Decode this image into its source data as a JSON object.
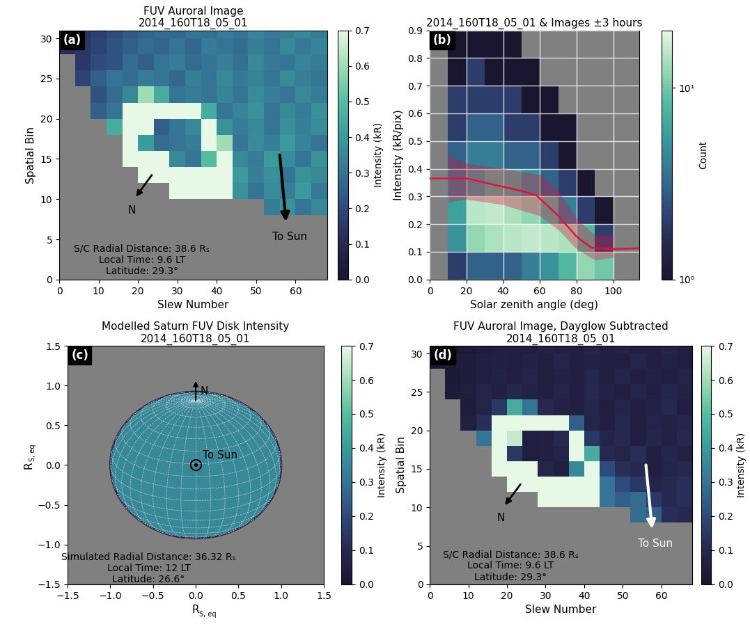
{
  "chart_data": [
    {
      "type": "heatmap",
      "panel_label": "(a)",
      "title": "FUV Auroral Image\n2014_160T18_05_01",
      "xlabel": "Slew Number",
      "ylabel": "Spatial Bin",
      "xlim": [
        0,
        68
      ],
      "ylim": [
        0,
        31
      ],
      "xticks": [
        0,
        10,
        20,
        30,
        40,
        50,
        60
      ],
      "yticks": [
        0,
        5,
        10,
        15,
        20,
        25,
        30
      ],
      "x_edges": [
        0,
        4,
        8,
        12,
        16,
        20,
        24,
        28,
        32,
        36,
        40,
        44,
        48,
        52,
        56,
        60,
        64,
        68
      ],
      "y_edges": [
        0,
        2,
        4,
        6,
        8,
        10,
        12,
        14,
        16,
        18,
        20,
        22,
        24,
        26,
        28,
        30,
        31
      ],
      "cells": [
        [
          null,
          null,
          null,
          null,
          null,
          null,
          null,
          null,
          null,
          null,
          null,
          null,
          null,
          null,
          null,
          null,
          null
        ],
        [
          null,
          null,
          null,
          null,
          null,
          null,
          null,
          null,
          null,
          null,
          null,
          null,
          null,
          null,
          null,
          null,
          null
        ],
        [
          null,
          null,
          null,
          null,
          null,
          null,
          null,
          null,
          null,
          null,
          null,
          null,
          null,
          null,
          null,
          null,
          null
        ],
        [
          null,
          null,
          null,
          null,
          null,
          null,
          null,
          null,
          null,
          null,
          null,
          null,
          null,
          null,
          null,
          null,
          null
        ],
        [
          null,
          null,
          null,
          null,
          null,
          null,
          null,
          null,
          null,
          null,
          null,
          null,
          null,
          0.32,
          0.38,
          0.3,
          0.35
        ],
        [
          null,
          null,
          null,
          null,
          null,
          null,
          null,
          0.9,
          0.9,
          0.9,
          0.85,
          0.38,
          0.3,
          0.36,
          0.33,
          0.4,
          0.31
        ],
        [
          null,
          null,
          null,
          null,
          null,
          0.9,
          0.9,
          0.9,
          0.9,
          0.9,
          0.8,
          0.4,
          0.33,
          0.37,
          0.3,
          0.38,
          0.35
        ],
        [
          null,
          null,
          null,
          null,
          0.85,
          0.9,
          0.8,
          0.35,
          0.3,
          0.5,
          0.9,
          0.35,
          0.32,
          0.4,
          0.36,
          0.3,
          0.38
        ],
        [
          null,
          null,
          null,
          null,
          0.9,
          0.4,
          0.28,
          0.3,
          0.32,
          0.85,
          0.6,
          0.3,
          0.36,
          0.33,
          0.4,
          0.34,
          0.3
        ],
        [
          null,
          null,
          null,
          0.45,
          0.9,
          0.75,
          0.25,
          0.3,
          0.35,
          0.8,
          0.38,
          0.32,
          0.35,
          0.3,
          0.37,
          0.33,
          0.36
        ],
        [
          null,
          null,
          0.25,
          0.3,
          0.9,
          0.9,
          0.85,
          0.8,
          0.75,
          0.45,
          0.3,
          0.34,
          0.38,
          0.3,
          0.35,
          0.32,
          0.37
        ],
        [
          null,
          null,
          0.22,
          0.28,
          0.35,
          0.6,
          0.45,
          0.3,
          0.32,
          0.3,
          0.34,
          0.3,
          0.36,
          0.33,
          0.3,
          0.35,
          0.32
        ],
        [
          null,
          0.18,
          0.25,
          0.3,
          0.28,
          0.32,
          0.3,
          0.27,
          0.33,
          0.3,
          0.35,
          0.31,
          0.34,
          0.3,
          0.36,
          0.33,
          0.3
        ],
        [
          null,
          0.15,
          0.2,
          0.22,
          0.28,
          0.25,
          0.3,
          0.32,
          0.28,
          0.3,
          0.33,
          0.29,
          0.35,
          0.31,
          0.3,
          0.34,
          0.32
        ],
        [
          0.12,
          0.15,
          0.18,
          0.22,
          0.25,
          0.28,
          0.26,
          0.3,
          0.27,
          0.32,
          0.3,
          0.28,
          0.33,
          0.3,
          0.35,
          0.31,
          0.34
        ],
        [
          0.1,
          0.14,
          0.17,
          0.2,
          0.24,
          0.26,
          0.28,
          0.27,
          0.3,
          0.29,
          0.32,
          0.3,
          0.34,
          0.31,
          0.33,
          0.35,
          0.32
        ]
      ],
      "colorbar": {
        "label": "Intensity (kR)",
        "range": [
          0.0,
          0.7
        ],
        "ticks": [
          0.0,
          0.1,
          0.2,
          0.3,
          0.4,
          0.5,
          0.6,
          0.7
        ]
      },
      "info_text": "S/C Radial Distance: 38.6 Rₛ\nLocal Time: 9.6 LT\nLatitude: 29.3°",
      "north_label": {
        "text": "N",
        "color": "#000000"
      },
      "sun_label": {
        "text": "To Sun",
        "color": "#000000"
      }
    },
    {
      "type": "hist2d",
      "panel_label": "(b)",
      "title": "2014_160T18_05_01 & Images ±3 hours",
      "xlabel": "Solar zenith angle (deg)",
      "ylabel": "Intensity (kR/pix)",
      "xlim": [
        0,
        114
      ],
      "ylim": [
        0.0,
        0.9
      ],
      "xticks": [
        0,
        20,
        40,
        60,
        80,
        100
      ],
      "yticks": [
        0.0,
        0.1,
        0.2,
        0.3,
        0.4,
        0.5,
        0.6,
        0.7,
        0.8,
        0.9
      ],
      "grid": true,
      "x_edges": [
        0,
        10,
        20,
        30,
        40,
        50,
        60,
        70,
        80,
        90,
        100,
        110
      ],
      "y_edges": [
        0.0,
        0.1,
        0.2,
        0.3,
        0.4,
        0.5,
        0.6,
        0.7,
        0.8,
        0.9
      ],
      "counts": [
        [
          null,
          2,
          3,
          3,
          3,
          4,
          5,
          8,
          12,
          10,
          null
        ],
        [
          null,
          5,
          12,
          14,
          15,
          16,
          15,
          14,
          8,
          2,
          null
        ],
        [
          null,
          6,
          15,
          16,
          14,
          12,
          8,
          4,
          2,
          1,
          null
        ],
        [
          null,
          4,
          6,
          8,
          7,
          5,
          3,
          2,
          1,
          null,
          null
        ],
        [
          null,
          3,
          4,
          4,
          3,
          3,
          2,
          1,
          null,
          null,
          null
        ],
        [
          null,
          2,
          3,
          3,
          2,
          2,
          1,
          1,
          null,
          null,
          null
        ],
        [
          null,
          2,
          2,
          2,
          2,
          1,
          1,
          null,
          null,
          null,
          null
        ],
        [
          null,
          1,
          2,
          1,
          1,
          1,
          null,
          null,
          null,
          null,
          null
        ],
        [
          null,
          1,
          1,
          1,
          1,
          null,
          null,
          null,
          null,
          null,
          null
        ]
      ],
      "colorbar": {
        "label": "Count",
        "range": [
          1,
          20
        ],
        "log": true,
        "ticks": [
          {
            "value": 1,
            "label": "10⁰"
          },
          {
            "value": 10,
            "label": "10¹"
          }
        ]
      },
      "series": [
        {
          "type": "band",
          "color": "#dc143c",
          "x": [
            10,
            20,
            30,
            40,
            50,
            60,
            70,
            80,
            90,
            100
          ],
          "lower": [
            0.28,
            0.29,
            0.28,
            0.27,
            0.25,
            0.23,
            0.18,
            0.11,
            0.07,
            0.08
          ],
          "upper": [
            0.45,
            0.42,
            0.41,
            0.4,
            0.39,
            0.38,
            0.32,
            0.22,
            0.16,
            0.16
          ]
        },
        {
          "type": "line",
          "color": "#dc143c",
          "x": [
            0,
            20,
            30,
            40,
            50,
            58,
            70,
            80,
            88,
            100,
            114
          ],
          "values": [
            0.365,
            0.365,
            0.35,
            0.335,
            0.32,
            0.305,
            0.23,
            0.155,
            0.115,
            0.11,
            0.113
          ]
        }
      ]
    },
    {
      "type": "disk",
      "panel_label": "(c)",
      "title": "Modelled Saturn FUV Disk Intensity\n2014_160T18_05_01",
      "xlabel": {
        "text": "R",
        "subscript": "S, eq"
      },
      "ylabel": {
        "text": "R",
        "subscript": "S, eq"
      },
      "xlim": [
        -1.5,
        1.5
      ],
      "ylim": [
        -1.5,
        1.5
      ],
      "xticks": [
        {
          "value": -1.5,
          "label": "−1.5"
        },
        {
          "value": -1.0,
          "label": "−1.0"
        },
        {
          "value": -0.5,
          "label": "−0.5"
        },
        0.0,
        0.5,
        1.0,
        1.5
      ],
      "yticks": [
        {
          "value": -1.5,
          "label": "−1.5"
        },
        {
          "value": -1.0,
          "label": "−1.0"
        },
        {
          "value": -0.5,
          "label": "−0.5"
        },
        0.0,
        0.5,
        1.0,
        1.5
      ],
      "disk_intensity": 0.35,
      "view_latitude": 26.6,
      "colorbar": {
        "label": "Intensity (kR)",
        "range": [
          0.0,
          0.7
        ],
        "ticks": [
          0.0,
          0.1,
          0.2,
          0.3,
          0.4,
          0.5,
          0.6,
          0.7
        ]
      },
      "info_text": "Simulated Radial Distance: 36.32 Rₛ\nLocal Time: 12 LT\nLatitude: 26.6°",
      "north_label": {
        "text": "N",
        "color": "#000000"
      },
      "sun_label": {
        "text": "To Sun",
        "color": "#000000"
      }
    },
    {
      "type": "heatmap",
      "panel_label": "(d)",
      "title": "FUV Auroral Image, Dayglow Subtracted\n2014_160T18_05_01",
      "xlabel": "Slew Number",
      "ylabel": "Spatial Bin",
      "xlim": [
        0,
        68
      ],
      "ylim": [
        0,
        31
      ],
      "xticks": [
        0,
        10,
        20,
        30,
        40,
        50,
        60
      ],
      "yticks": [
        0,
        5,
        10,
        15,
        20,
        25,
        30
      ],
      "x_edges": [
        0,
        4,
        8,
        12,
        16,
        20,
        24,
        28,
        32,
        36,
        40,
        44,
        48,
        52,
        56,
        60,
        64,
        68
      ],
      "y_edges": [
        0,
        2,
        4,
        6,
        8,
        10,
        12,
        14,
        16,
        18,
        20,
        22,
        24,
        26,
        28,
        30,
        31
      ],
      "cells": [
        [
          null,
          null,
          null,
          null,
          null,
          null,
          null,
          null,
          null,
          null,
          null,
          null,
          null,
          null,
          null,
          null,
          null
        ],
        [
          null,
          null,
          null,
          null,
          null,
          null,
          null,
          null,
          null,
          null,
          null,
          null,
          null,
          null,
          null,
          null,
          null
        ],
        [
          null,
          null,
          null,
          null,
          null,
          null,
          null,
          null,
          null,
          null,
          null,
          null,
          null,
          null,
          null,
          null,
          null
        ],
        [
          null,
          null,
          null,
          null,
          null,
          null,
          null,
          null,
          null,
          null,
          null,
          null,
          null,
          null,
          null,
          null,
          null
        ],
        [
          null,
          null,
          null,
          null,
          null,
          null,
          null,
          null,
          null,
          null,
          null,
          null,
          null,
          0.28,
          0.25,
          0.12,
          0.1
        ],
        [
          null,
          null,
          null,
          null,
          null,
          null,
          null,
          0.9,
          0.9,
          0.9,
          0.8,
          0.3,
          0.25,
          0.28,
          0.15,
          0.1,
          0.12
        ],
        [
          null,
          null,
          null,
          null,
          null,
          0.85,
          0.9,
          0.9,
          0.9,
          0.9,
          0.75,
          0.3,
          0.2,
          0.15,
          0.08,
          0.1,
          0.12
        ],
        [
          null,
          null,
          null,
          null,
          0.8,
          0.9,
          0.75,
          0.08,
          0.05,
          0.35,
          0.9,
          0.2,
          0.12,
          0.1,
          0.06,
          0.08,
          0.1
        ],
        [
          null,
          null,
          null,
          null,
          0.9,
          0.15,
          0.05,
          0.06,
          0.08,
          0.8,
          0.45,
          0.1,
          0.08,
          0.12,
          0.06,
          0.09,
          0.07
        ],
        [
          null,
          null,
          null,
          0.3,
          0.9,
          0.65,
          0.05,
          0.06,
          0.1,
          0.75,
          0.15,
          0.08,
          0.1,
          0.06,
          0.09,
          0.07,
          0.1
        ],
        [
          null,
          null,
          0.05,
          0.12,
          0.9,
          0.9,
          0.8,
          0.75,
          0.7,
          0.25,
          0.08,
          0.06,
          0.1,
          0.05,
          0.08,
          0.07,
          0.09
        ],
        [
          null,
          null,
          0.04,
          0.08,
          0.15,
          0.45,
          0.3,
          0.1,
          0.07,
          0.06,
          0.09,
          0.05,
          0.08,
          0.06,
          0.07,
          0.1,
          0.06
        ],
        [
          null,
          0.03,
          0.05,
          0.08,
          0.06,
          0.09,
          0.07,
          0.05,
          0.08,
          0.06,
          0.1,
          0.07,
          0.05,
          0.08,
          0.06,
          0.09,
          0.07
        ],
        [
          null,
          0.02,
          0.04,
          0.05,
          0.07,
          0.06,
          0.08,
          0.05,
          0.07,
          0.06,
          0.09,
          0.05,
          0.08,
          0.06,
          0.07,
          0.05,
          0.08
        ],
        [
          0.02,
          0.03,
          0.04,
          0.05,
          0.06,
          0.05,
          0.07,
          0.06,
          0.08,
          0.05,
          0.07,
          0.06,
          0.05,
          0.08,
          0.06,
          0.07,
          0.05
        ],
        [
          0.02,
          0.02,
          0.03,
          0.04,
          0.05,
          0.06,
          0.05,
          0.07,
          0.06,
          0.05,
          0.08,
          0.06,
          0.07,
          0.05,
          0.06,
          0.08,
          0.06
        ]
      ],
      "colorbar": {
        "label": "Intensity (kR)",
        "range": [
          0.0,
          0.7
        ],
        "ticks": [
          0.0,
          0.1,
          0.2,
          0.3,
          0.4,
          0.5,
          0.6,
          0.7
        ]
      },
      "info_text": "S/C Radial Distance: 38.6 Rₛ\nLocal Time: 9.6 LT\nLatitude: 29.3°",
      "north_label": {
        "text": "N",
        "color": "#000000"
      },
      "sun_label": {
        "text": "To Sun",
        "color": "#ffffff"
      }
    }
  ]
}
